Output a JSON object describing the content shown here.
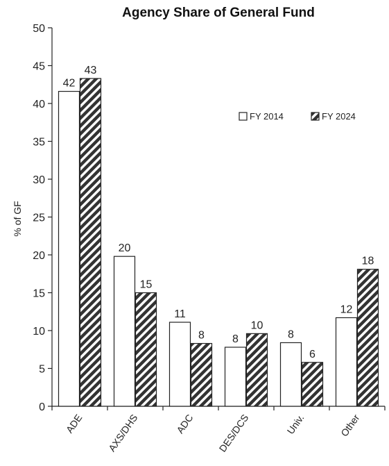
{
  "chart_data": {
    "type": "bar",
    "title": "Agency Share of General Fund",
    "xlabel": "",
    "ylabel": "% of GF",
    "ylim": [
      0,
      50
    ],
    "yticks": [
      0,
      5,
      10,
      15,
      20,
      25,
      30,
      35,
      40,
      45,
      50
    ],
    "categories": [
      "ADE",
      "AXS/DHS",
      "ADC",
      "DES/DCS",
      "Univ.",
      "Other"
    ],
    "series": [
      {
        "name": "FY 2014",
        "values": [
          41.6,
          19.8,
          11.1,
          7.8,
          8.4,
          11.7
        ],
        "labels": [
          "42",
          "20",
          "11",
          "8",
          "8",
          "12"
        ],
        "fill": "#ffffff",
        "pattern": "none"
      },
      {
        "name": "FY 2024",
        "values": [
          43.3,
          15.0,
          8.3,
          9.6,
          5.8,
          18.1
        ],
        "labels": [
          "43",
          "15",
          "8",
          "10",
          "6",
          "18"
        ],
        "fill": "#333333",
        "pattern": "diagonal-hatch"
      }
    ],
    "grid": false,
    "legend": "top-right"
  }
}
